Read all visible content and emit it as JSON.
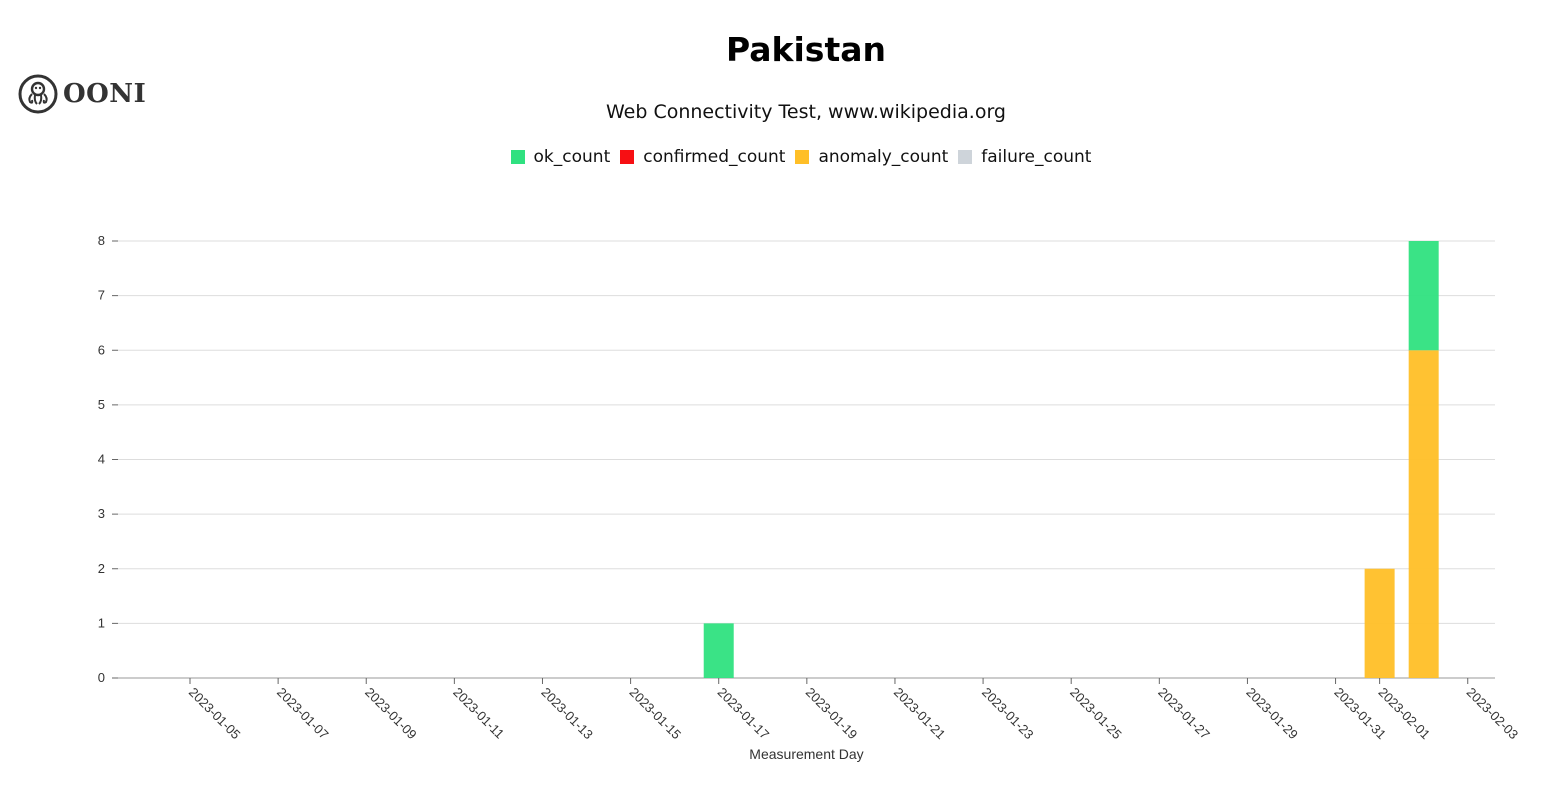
{
  "logo": {
    "text": "OONI"
  },
  "chart_data": {
    "type": "bar",
    "stacked": true,
    "title": "Pakistan",
    "subtitle": "Web Connectivity Test, www.wikipedia.org",
    "xlabel": "Measurement Day",
    "ylabel": "",
    "ylim": [
      0,
      8
    ],
    "y_ticks": [
      0,
      1,
      2,
      3,
      4,
      5,
      6,
      7,
      8
    ],
    "x_ticks": [
      "2023-01-05",
      "2023-01-07",
      "2023-01-09",
      "2023-01-11",
      "2023-01-13",
      "2023-01-15",
      "2023-01-17",
      "2023-01-19",
      "2023-01-21",
      "2023-01-23",
      "2023-01-25",
      "2023-01-27",
      "2023-01-29",
      "2023-01-31",
      "2023-02-01",
      "2023-02-03"
    ],
    "grid": true,
    "legend_position": "top-center",
    "categories": [
      "2023-01-17",
      "2023-02-01",
      "2023-02-02"
    ],
    "series": [
      {
        "name": "ok_count",
        "color": "#2fe180",
        "values": [
          1,
          0,
          2
        ]
      },
      {
        "name": "confirmed_count",
        "color": "#f70f13",
        "values": [
          0,
          0,
          0
        ]
      },
      {
        "name": "anomaly_count",
        "color": "#ffbf27",
        "values": [
          0,
          2,
          6
        ]
      },
      {
        "name": "failure_count",
        "color": "#ced4da",
        "values": [
          0,
          0,
          0
        ]
      }
    ]
  }
}
